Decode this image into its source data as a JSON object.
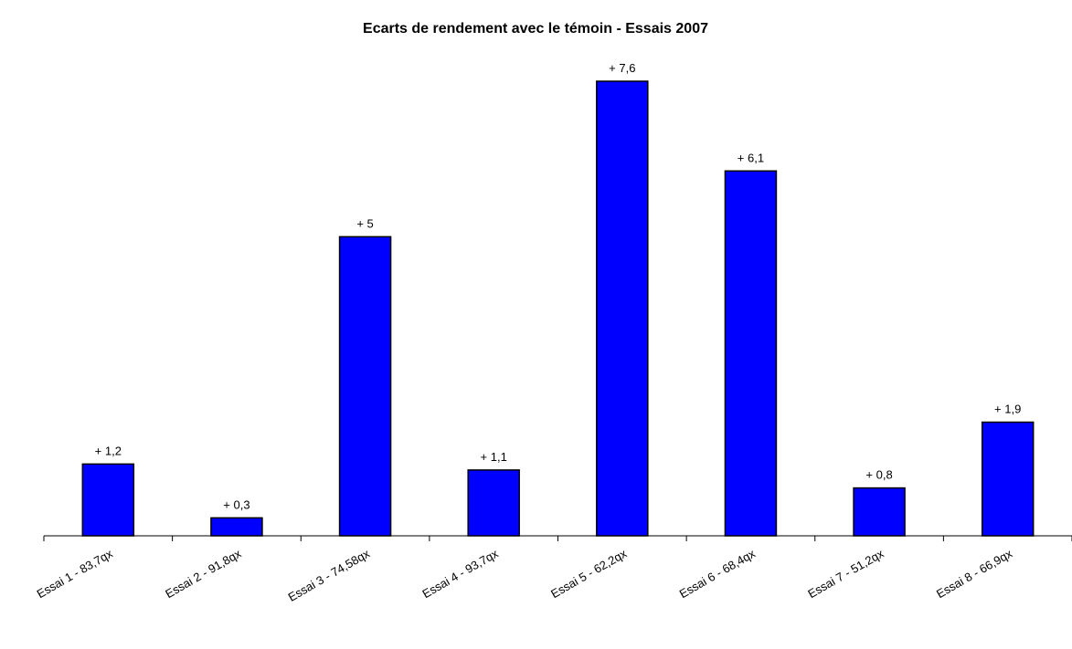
{
  "chart_data": {
    "type": "bar",
    "title": "Ecarts de rendement avec le témoin - Essais 2007",
    "xlabel": "",
    "ylabel": "",
    "categories": [
      "Essai 1 - 83,7qx",
      "Essai 2 - 91,8qx",
      "Essai 3 - 74,58qx",
      "Essai 4 - 93,7qx",
      "Essai 5 - 62,2qx",
      "Essai 6 - 68,4qx",
      "Essai 7 - 51,2qx",
      "Essai 8 - 66,9qx"
    ],
    "values": [
      1.2,
      0.3,
      5,
      1.1,
      7.6,
      6.1,
      0.8,
      1.9
    ],
    "data_labels": [
      "+ 1,2",
      "+ 0,3",
      "+ 5",
      "+ 1,1",
      "+ 7,6",
      "+ 6,1",
      "+ 0,8",
      "+ 1,9"
    ],
    "ylim": [
      0,
      7.6
    ],
    "grid": false,
    "legend": "none",
    "bar_color": "#0000FF",
    "bar_border_color": "#000000"
  }
}
